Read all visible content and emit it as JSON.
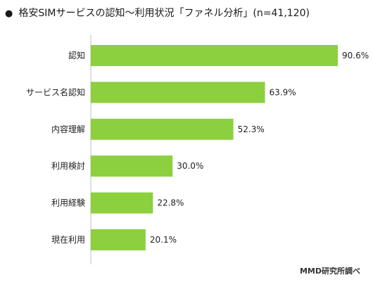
{
  "title": "格安SIMサービスの認知～利用状況「ファネル分析」(n=41,120)",
  "source": "MMD研究所調べ",
  "colors": {
    "bar": "#8ccf3f",
    "text": "#222222"
  },
  "chart_data": {
    "type": "bar",
    "orientation": "horizontal",
    "title": "格安SIMサービスの認知～利用状況「ファネル分析」(n=41,120)",
    "categories": [
      "認知",
      "サービス名認知",
      "内容理解",
      "利用検討",
      "利用経験",
      "現在利用"
    ],
    "values": [
      90.6,
      63.9,
      52.3,
      30.0,
      22.8,
      20.1
    ],
    "value_labels": [
      "90.6%",
      "63.9%",
      "52.3%",
      "30.0%",
      "22.8%",
      "20.1%"
    ],
    "unit": "%",
    "xlim": [
      0,
      100
    ],
    "grid": false,
    "legend": "none"
  }
}
